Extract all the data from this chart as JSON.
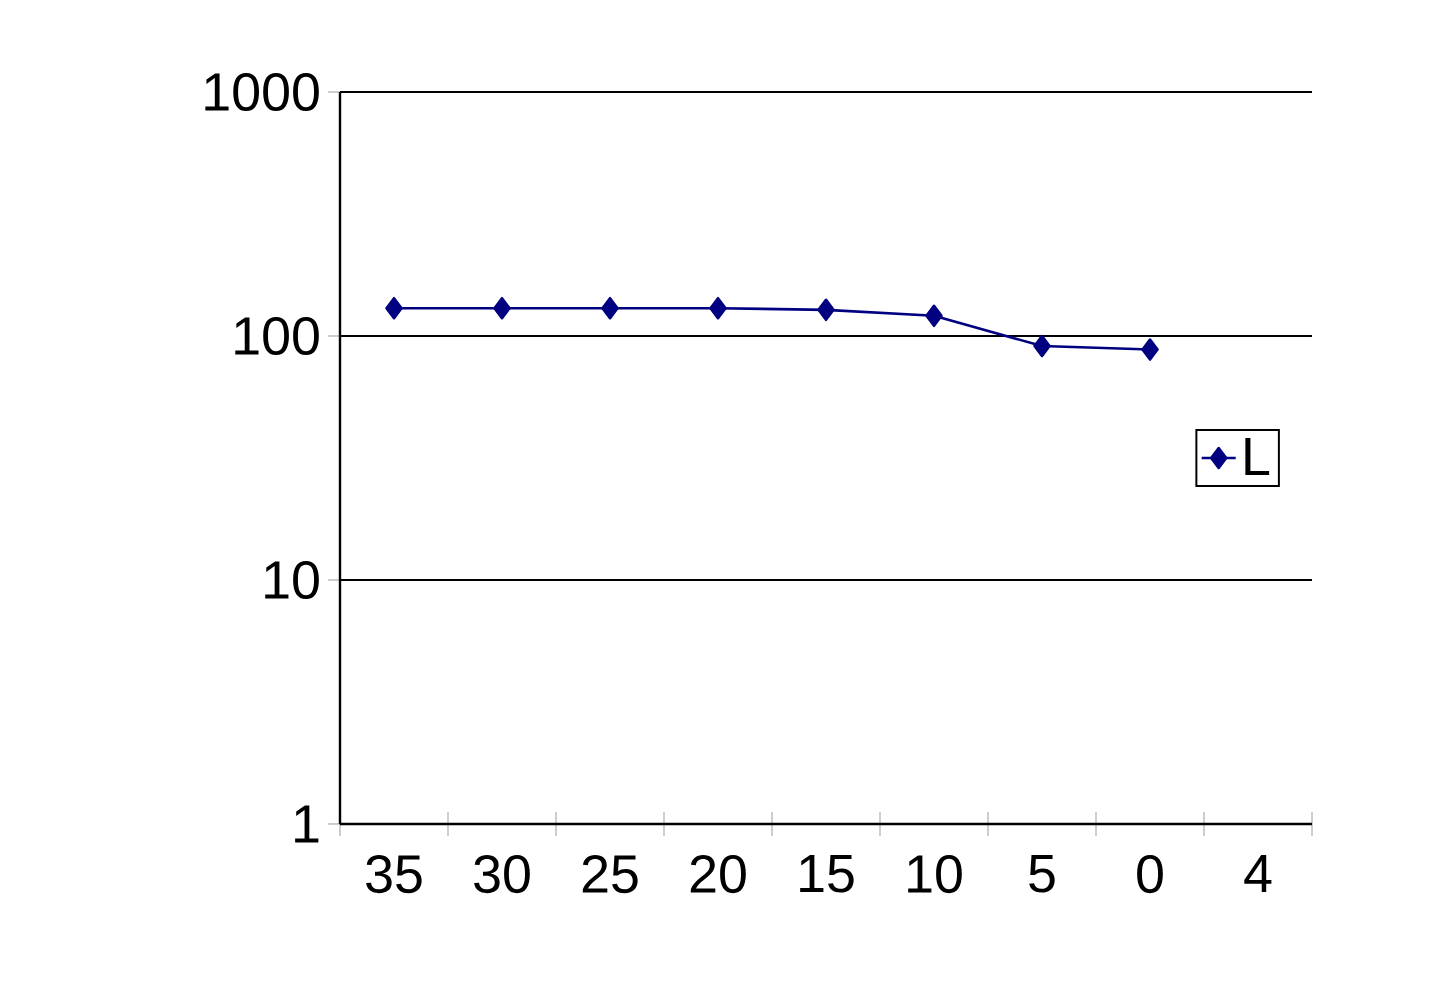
{
  "chart_data": {
    "type": "line",
    "categories": [
      "35",
      "30",
      "25",
      "20",
      "15",
      "10",
      "5",
      "0",
      "4"
    ],
    "series": [
      {
        "name": "L",
        "color": "#000080",
        "values": [
          130,
          130,
          130,
          130,
          128,
          121,
          91,
          88,
          null
        ]
      }
    ],
    "log": "y",
    "ylim": [
      1,
      1000
    ],
    "yticks": [
      1,
      10,
      100,
      1000
    ],
    "grid": "y",
    "legend": "right",
    "marker": "diamond",
    "line_style": "solid"
  }
}
